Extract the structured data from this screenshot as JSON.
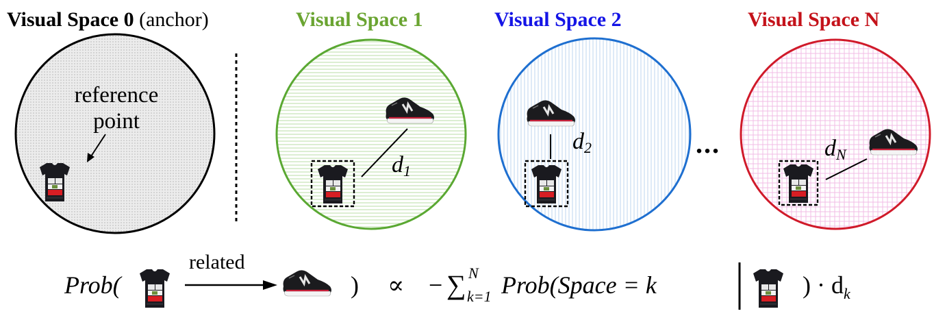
{
  "colors": {
    "space0": "#000000",
    "space1": "#5aa832",
    "space2": "#1e6fd0",
    "spaceN": "#d01a2a",
    "title1": "#6aa431",
    "title2": "#1414e6",
    "titleN": "#c4121a"
  },
  "titles": {
    "space0_main": "Visual Space 0",
    "space0_sub": "(anchor)",
    "space1": "Visual Space 1",
    "space2": "Visual Space 2",
    "spaceN": "Visual Space N"
  },
  "labels": {
    "reference_line1": "reference",
    "reference_line2": "point",
    "d1": "d",
    "d1_sub": "1",
    "d2": "d",
    "d2_sub": "2",
    "dN": "d",
    "dN_sub": "N",
    "ellipsis": "..."
  },
  "formula": {
    "prob_open": "Prob(",
    "related": "related",
    "close_paren": ")",
    "propto": "∝",
    "minus": "−",
    "sum": "∑",
    "sum_upper": "N",
    "sum_lower": "k=1",
    "prob_space": "Prob(Space = k",
    "tail": ") · d",
    "tail_sub": "k"
  },
  "shirt_text": [
    "CALI",
    "F  N",
    "NIA"
  ],
  "icons": [
    "tshirt-icon",
    "sneaker-icon"
  ]
}
